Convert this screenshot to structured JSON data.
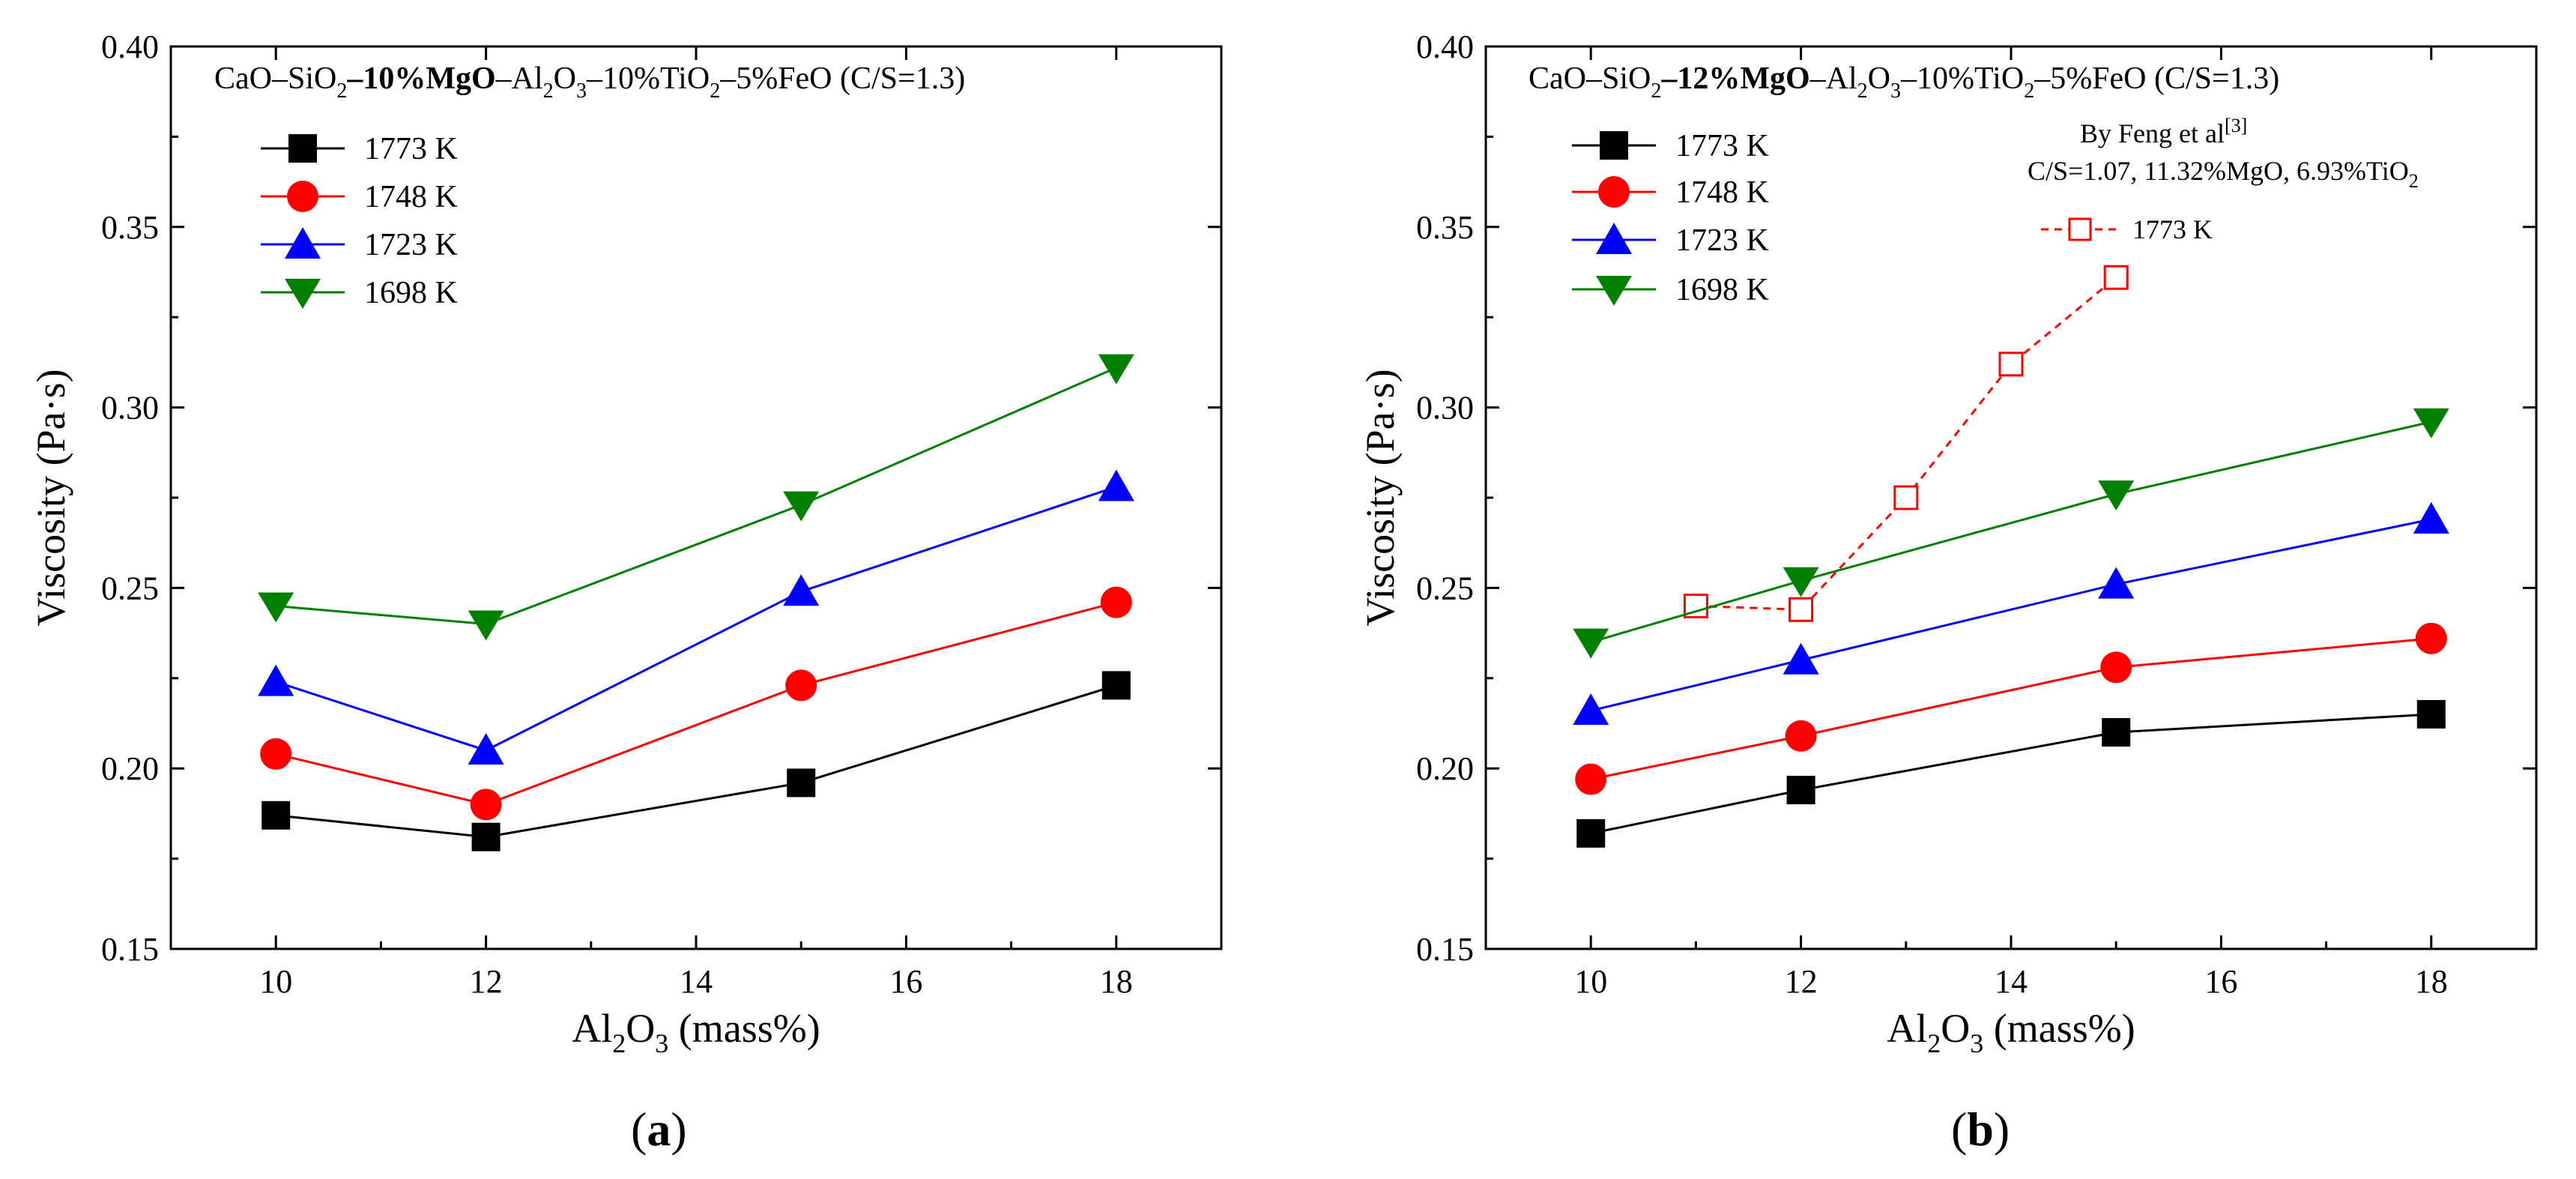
{
  "chart_data": [
    {
      "type": "line",
      "panel_label": "a",
      "title": {
        "prefix": "CaO–SiO",
        "prefix_sub": "2",
        "bold": "–10%MgO",
        "middle": "–Al",
        "middle_sub1": "2",
        "middle_o": "O",
        "middle_sub2": "3",
        "tio": "–10%TiO",
        "tio_sub": "2",
        "suffix": "–5%FeO (C/S=1.3)"
      },
      "xlabel": {
        "main": "Al",
        "sub1": "2",
        "o": "O",
        "sub2": "3",
        "unit": " (mass%)"
      },
      "ylabel": "Viscosity (Pa·s)",
      "xlim": [
        9,
        19
      ],
      "ylim": [
        0.15,
        0.4
      ],
      "xticks": [
        10,
        12,
        14,
        16,
        18
      ],
      "xtick_labels": [
        "10",
        "12",
        "14",
        "16",
        "18"
      ],
      "yticks": [
        0.15,
        0.2,
        0.25,
        0.3,
        0.35,
        0.4
      ],
      "ytick_labels": [
        "0.15",
        "0.20",
        "0.25",
        "0.30",
        "0.35",
        "0.40"
      ],
      "x": [
        10,
        12,
        15,
        18
      ],
      "series": [
        {
          "name": "1773 K",
          "color": "#000000",
          "marker": "square",
          "values": [
            0.187,
            0.181,
            0.196,
            0.223
          ]
        },
        {
          "name": "1748 K",
          "color": "#ff0000",
          "marker": "circle",
          "values": [
            0.204,
            0.19,
            0.223,
            0.246
          ]
        },
        {
          "name": "1723 K",
          "color": "#0000ff",
          "marker": "triangle-up",
          "values": [
            0.224,
            0.205,
            0.249,
            0.278
          ]
        },
        {
          "name": "1698 K",
          "color": "#008000",
          "marker": "triangle-down",
          "values": [
            0.245,
            0.24,
            0.273,
            0.311
          ]
        }
      ],
      "legend_position": "top-left"
    },
    {
      "type": "line",
      "panel_label": "b",
      "title": {
        "prefix": "CaO–SiO",
        "prefix_sub": "2",
        "bold": "–12%MgO",
        "middle": "–Al",
        "middle_sub1": "2",
        "middle_o": "O",
        "middle_sub2": "3",
        "tio": "–10%TiO",
        "tio_sub": "2",
        "suffix": "–5%FeO (C/S=1.3)"
      },
      "xlabel": {
        "main": "Al",
        "sub1": "2",
        "o": "O",
        "sub2": "3",
        "unit": " (mass%)"
      },
      "ylabel": "Viscosity (Pa·s)",
      "xlim": [
        9,
        19
      ],
      "ylim": [
        0.15,
        0.4
      ],
      "xticks": [
        10,
        12,
        14,
        16,
        18
      ],
      "xtick_labels": [
        "10",
        "12",
        "14",
        "16",
        "18"
      ],
      "yticks": [
        0.15,
        0.2,
        0.25,
        0.3,
        0.35,
        0.4
      ],
      "ytick_labels": [
        "0.15",
        "0.20",
        "0.25",
        "0.30",
        "0.35",
        "0.40"
      ],
      "x": [
        10,
        12,
        15,
        18
      ],
      "series": [
        {
          "name": "1773 K",
          "color": "#000000",
          "marker": "square",
          "values": [
            0.182,
            0.194,
            0.21,
            0.215
          ]
        },
        {
          "name": "1748 K",
          "color": "#ff0000",
          "marker": "circle",
          "values": [
            0.197,
            0.209,
            0.228,
            0.236
          ]
        },
        {
          "name": "1723 K",
          "color": "#0000ff",
          "marker": "triangle-up",
          "values": [
            0.216,
            0.23,
            0.251,
            0.269
          ]
        },
        {
          "name": "1698 K",
          "color": "#008000",
          "marker": "triangle-down",
          "values": [
            0.235,
            0.252,
            0.276,
            0.296
          ]
        }
      ],
      "reference": {
        "title": "By Feng et al",
        "title_sup": "[3]",
        "subtitle": "C/S=1.07, 11.32%MgO, 6.93%TiO",
        "subtitle_sub": "2",
        "name": "1773 K",
        "color": "#ff0000",
        "marker": "open-square",
        "dashed": true,
        "x": [
          11,
          12,
          13,
          14,
          15
        ],
        "values": [
          0.245,
          0.244,
          0.275,
          0.312,
          0.336
        ]
      },
      "legend_position": "top-left"
    }
  ]
}
